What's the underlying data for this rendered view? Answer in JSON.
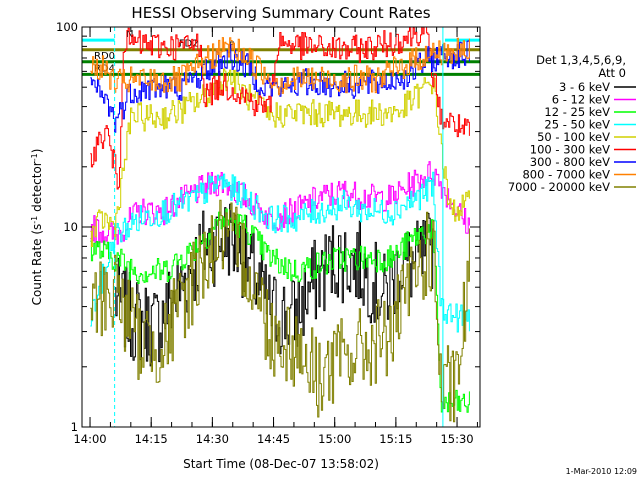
{
  "chart_data": {
    "type": "line",
    "title": "HESSI Observing Summary Count Rates",
    "xlabel": "Start Time (08-Dec-07 13:58:02)",
    "ylabel": "Count Rate (s",
    "ylabel_sup": "-1",
    "ylabel_tail": " detector",
    "ylabel_close": ")",
    "yscale": "log",
    "ylim": [
      1,
      100
    ],
    "xlim_minutes_after_start": [
      0,
      97.6
    ],
    "x_ticks": [
      {
        "label": "14:00",
        "minutes": 1.97
      },
      {
        "label": "14:15",
        "minutes": 16.97
      },
      {
        "label": "14:30",
        "minutes": 31.97
      },
      {
        "label": "14:45",
        "minutes": 46.97
      },
      {
        "label": "15:00",
        "minutes": 61.97
      },
      {
        "label": "15:15",
        "minutes": 76.97
      },
      {
        "label": "15:30",
        "minutes": 91.97
      }
    ],
    "y_ticks": [
      {
        "label": "1",
        "value": 1
      },
      {
        "label": "10",
        "value": 10
      },
      {
        "label": "100",
        "value": 100
      }
    ],
    "legend_header": [
      "Det 1,3,4,5,6,9,",
      "Att 0"
    ],
    "legend_position": "right",
    "series": [
      {
        "name": "3 - 6 keV",
        "color": "#000000",
        "x": [
          8,
          12,
          18,
          24,
          30,
          36,
          40,
          46,
          52,
          56,
          62,
          68,
          74,
          78,
          82,
          86
        ],
        "y": [
          4.5,
          3.5,
          3.2,
          5,
          8,
          9,
          7,
          3.8,
          3.5,
          5,
          7,
          6.5,
          4.5,
          6.5,
          6.5,
          8
        ]
      },
      {
        "name": "6 - 12 keV",
        "color": "#ff00ff",
        "x": [
          2,
          8,
          14,
          20,
          28,
          34,
          40,
          46,
          52,
          58,
          64,
          70,
          76,
          82,
          86,
          92,
          95
        ],
        "y": [
          10,
          9,
          12,
          12,
          15,
          17,
          14,
          11,
          12,
          14,
          15,
          14,
          14,
          17,
          19,
          12,
          10
        ]
      },
      {
        "name": "12 - 25 keV",
        "color": "#00ff00",
        "x": [
          2,
          8,
          14,
          20,
          28,
          34,
          40,
          46,
          52,
          58,
          64,
          70,
          76,
          82,
          86,
          88,
          92,
          95
        ],
        "y": [
          8,
          7,
          6,
          6,
          8,
          11,
          10,
          7,
          6,
          6.5,
          7,
          7,
          7,
          9,
          10,
          1.3,
          1.3,
          1.3
        ]
      },
      {
        "name": "25 - 50 keV",
        "color": "#00ffff",
        "x": [
          2,
          8,
          14,
          20,
          28,
          34,
          40,
          46,
          52,
          58,
          64,
          70,
          76,
          82,
          86,
          88,
          92,
          95
        ],
        "y": [
          3.5,
          9,
          11,
          12,
          14,
          17,
          14,
          11,
          11,
          12,
          13,
          12,
          12,
          14,
          16,
          4,
          3.5,
          3.5
        ]
      },
      {
        "name": "50 - 100 keV",
        "color": "#d0d000",
        "x": [
          2,
          5,
          8,
          12,
          18,
          24,
          30,
          36,
          40,
          46,
          50,
          56,
          62,
          68,
          74,
          78,
          82,
          86,
          90,
          95
        ],
        "y": [
          9,
          11,
          10,
          36,
          35,
          38,
          45,
          58,
          46,
          36,
          37,
          37,
          37,
          37,
          37,
          38,
          45,
          54,
          12,
          13
        ]
      },
      {
        "name": "100 - 300 keV",
        "color": "#ff0000",
        "x": [
          2,
          6,
          9,
          10,
          14,
          20,
          26,
          29,
          30,
          34,
          38,
          42,
          46,
          48,
          54,
          60,
          66,
          72,
          76,
          80,
          84,
          88,
          92,
          95
        ],
        "y": [
          23,
          30,
          16,
          85,
          82,
          80,
          80,
          83,
          45,
          52,
          48,
          42,
          40,
          85,
          80,
          78,
          77,
          80,
          84,
          90,
          98,
          35,
          32,
          29
        ]
      },
      {
        "name": "300 - 800 keV",
        "color": "#0000ff",
        "x": [
          2,
          6,
          8,
          12,
          18,
          24,
          28,
          32,
          36,
          40,
          44,
          48,
          54,
          60,
          66,
          72,
          76,
          80,
          84,
          88,
          92,
          95
        ],
        "y": [
          52,
          42,
          34,
          48,
          50,
          50,
          56,
          64,
          72,
          64,
          52,
          49,
          53,
          52,
          51,
          52,
          54,
          58,
          67,
          72,
          73,
          73
        ]
      },
      {
        "name": "800 - 7000 keV",
        "color": "#ff8000",
        "x": [
          2,
          6,
          8,
          12,
          18,
          24,
          28,
          32,
          36,
          40,
          44,
          48,
          54,
          60,
          66,
          72,
          76,
          80,
          84,
          88,
          92,
          95
        ],
        "y": [
          65,
          60,
          52,
          54,
          54,
          54,
          62,
          72,
          80,
          72,
          60,
          53,
          55,
          55,
          55,
          55,
          60,
          66,
          72,
          75,
          75,
          75
        ]
      },
      {
        "name": "7000 - 20000 keV",
        "color": "#808000",
        "x": [
          2,
          8,
          14,
          20,
          28,
          34,
          40,
          46,
          52,
          58,
          64,
          70,
          76,
          82,
          86,
          88,
          92,
          95
        ],
        "y": [
          4,
          5,
          2.7,
          2.6,
          6,
          9,
          7,
          3,
          2.6,
          1.8,
          2.2,
          2.5,
          3,
          6,
          8,
          1.5,
          1.6,
          7
        ]
      }
    ],
    "flag_segments": [
      {
        "label": "N",
        "color": "#00ffff",
        "x_start": 0,
        "x_end": 8,
        "y": 86
      },
      {
        "label": "",
        "color": "#00ffff",
        "x_start": 89,
        "x_end": 97.6,
        "y": 86
      },
      {
        "label": "FD2",
        "color": "#808000",
        "x_start": 0,
        "x_end": 97.6,
        "y": 77
      },
      {
        "label": "RD0",
        "color": "#008000",
        "x_start": 0,
        "x_end": 97.6,
        "y": 67
      },
      {
        "label": "RD4",
        "color": "#008000",
        "x_start": 0,
        "x_end": 97.6,
        "y": 58
      }
    ],
    "flag_marks": [
      {
        "label": "F",
        "color": "#008000",
        "x": 36,
        "y": 78
      }
    ],
    "vertical_markers": [
      {
        "x": 8,
        "color": "#00ffff",
        "style": "dashed"
      },
      {
        "x": 88.5,
        "color": "#00ffff",
        "style": "solid"
      },
      {
        "x": 97.6,
        "color": "#00ffff",
        "style": "dashed"
      }
    ],
    "grid": false
  },
  "footer_stamp": "1-Mar-2010 12:09"
}
